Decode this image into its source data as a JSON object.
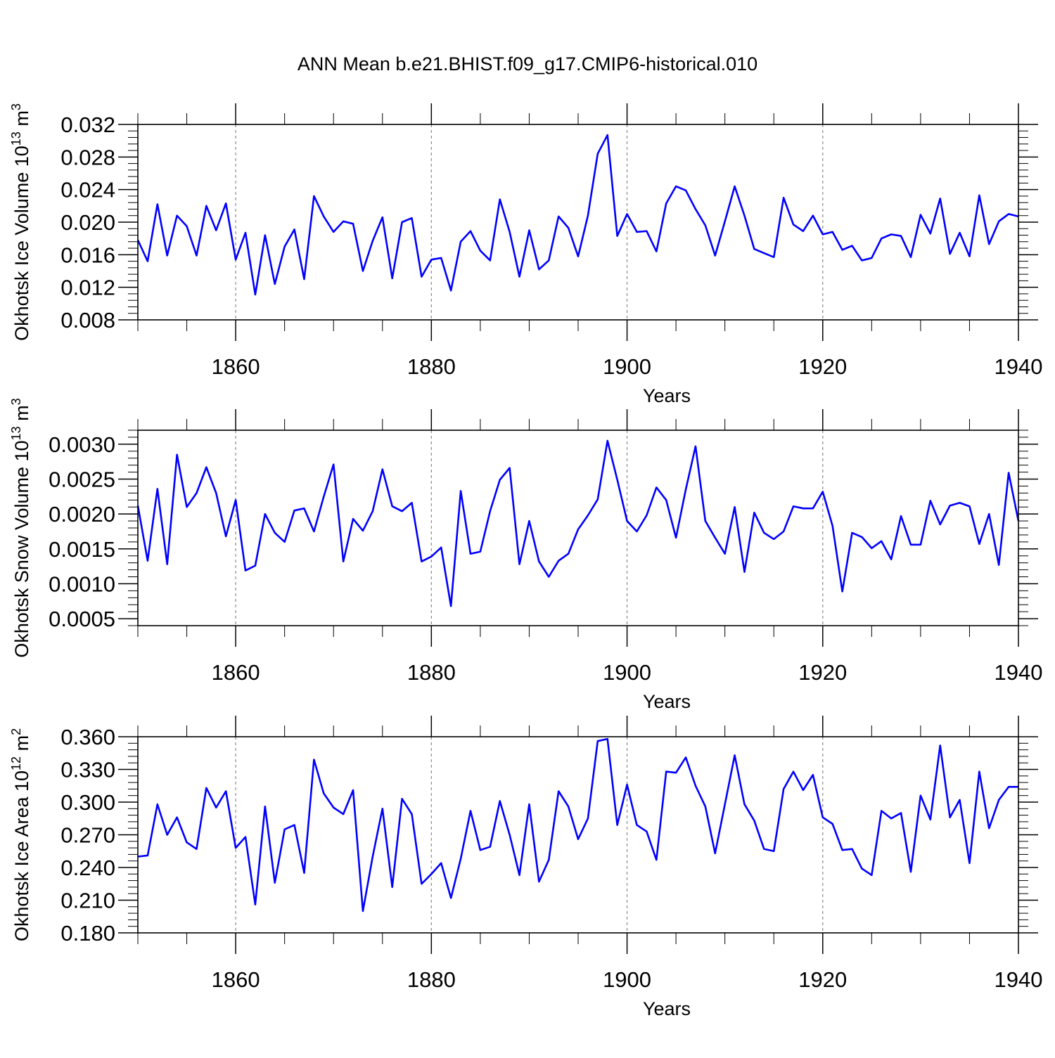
{
  "title": "ANN Mean b.e21.BHIST.f09_g17.CMIP6-historical.010",
  "line_color": "#0000ff",
  "chart_data": [
    {
      "type": "line",
      "ylabel_main": "Okhotsk Ice Volume 10",
      "ylabel_exp": "13",
      "ylabel_unit": " m",
      "ylabel_unit_exp": "3",
      "xlabel": "Years",
      "xlim": [
        1850,
        1940
      ],
      "ylim": [
        0.008,
        0.032
      ],
      "yticks": [
        0.008,
        0.012,
        0.016,
        0.02,
        0.024,
        0.028,
        0.032
      ],
      "ytick_labels": [
        "0.008",
        "0.012",
        "0.016",
        "0.020",
        "0.024",
        "0.028",
        "0.032"
      ],
      "yminor_step": 0.0008,
      "xticks": [
        1860,
        1880,
        1900,
        1920,
        1940
      ],
      "xtick_labels": [
        "1860",
        "1880",
        "1900",
        "1920",
        "1940"
      ],
      "x_start": 1850,
      "series": [
        {
          "name": "Okhotsk Ice Volume",
          "values": [
            0.0178,
            0.0152,
            0.0222,
            0.0159,
            0.0208,
            0.0195,
            0.0159,
            0.022,
            0.019,
            0.0223,
            0.0154,
            0.0187,
            0.0111,
            0.0184,
            0.0124,
            0.017,
            0.0191,
            0.013,
            0.0232,
            0.0207,
            0.0188,
            0.0201,
            0.0198,
            0.014,
            0.0177,
            0.0206,
            0.0131,
            0.02,
            0.0205,
            0.0133,
            0.0154,
            0.0156,
            0.0116,
            0.0176,
            0.0189,
            0.0165,
            0.0153,
            0.0228,
            0.0188,
            0.0133,
            0.019,
            0.0142,
            0.0153,
            0.0207,
            0.0193,
            0.0158,
            0.0208,
            0.0284,
            0.0307,
            0.0183,
            0.021,
            0.0188,
            0.0189,
            0.0164,
            0.0223,
            0.0244,
            0.0239,
            0.0216,
            0.0196,
            0.0159,
            0.0201,
            0.0244,
            0.0208,
            0.0167,
            0.0162,
            0.0157,
            0.023,
            0.0197,
            0.0189,
            0.0208,
            0.0185,
            0.0188,
            0.0166,
            0.0171,
            0.0153,
            0.0156,
            0.018,
            0.0185,
            0.0183,
            0.0157,
            0.0209,
            0.0186,
            0.0229,
            0.0161,
            0.0187,
            0.0158,
            0.0233,
            0.0173,
            0.0201,
            0.021,
            0.0207
          ]
        }
      ]
    },
    {
      "type": "line",
      "ylabel_main": "Okhotsk Snow Volume 10",
      "ylabel_exp": "13",
      "ylabel_unit": " m",
      "ylabel_unit_exp": "3",
      "xlabel": "Years",
      "xlim": [
        1850,
        1940
      ],
      "ylim": [
        0.0004,
        0.0032
      ],
      "yticks": [
        0.0005,
        0.001,
        0.0015,
        0.002,
        0.0025,
        0.003
      ],
      "ytick_labels": [
        "0.0005",
        "0.0010",
        "0.0015",
        "0.0020",
        "0.0025",
        "0.0030"
      ],
      "yminor_step": 0.0001,
      "xticks": [
        1860,
        1880,
        1900,
        1920,
        1940
      ],
      "xtick_labels": [
        "1860",
        "1880",
        "1900",
        "1920",
        "1940"
      ],
      "x_start": 1850,
      "series": [
        {
          "name": "Okhotsk Snow Volume",
          "values": [
            0.00212,
            0.00133,
            0.00236,
            0.00128,
            0.00285,
            0.0021,
            0.0023,
            0.00267,
            0.0023,
            0.00168,
            0.0022,
            0.00119,
            0.00126,
            0.002,
            0.00173,
            0.0016,
            0.00205,
            0.00208,
            0.00175,
            0.00225,
            0.00271,
            0.00132,
            0.00193,
            0.00176,
            0.00204,
            0.00264,
            0.00211,
            0.00204,
            0.00216,
            0.00132,
            0.00139,
            0.00152,
            0.00068,
            0.00233,
            0.00143,
            0.00146,
            0.00204,
            0.00249,
            0.00266,
            0.00128,
            0.0019,
            0.00132,
            0.0011,
            0.00133,
            0.00143,
            0.00178,
            0.00198,
            0.00221,
            0.00305,
            0.00249,
            0.0019,
            0.00175,
            0.00198,
            0.00238,
            0.0022,
            0.00166,
            0.00235,
            0.00297,
            0.0019,
            0.00166,
            0.00143,
            0.0021,
            0.00117,
            0.00202,
            0.00173,
            0.00164,
            0.00175,
            0.00211,
            0.00208,
            0.00208,
            0.00232,
            0.00183,
            0.00089,
            0.00173,
            0.00167,
            0.00151,
            0.00161,
            0.00135,
            0.00197,
            0.00156,
            0.00156,
            0.00219,
            0.00185,
            0.00212,
            0.00216,
            0.00211,
            0.00157,
            0.002,
            0.00127,
            0.00259,
            0.0019
          ]
        }
      ]
    },
    {
      "type": "line",
      "ylabel_main": "Okhotsk Ice Area 10",
      "ylabel_exp": "12",
      "ylabel_unit": " m",
      "ylabel_unit_exp": "2",
      "xlabel": "Years",
      "xlim": [
        1850,
        1940
      ],
      "ylim": [
        0.18,
        0.36
      ],
      "yticks": [
        0.18,
        0.21,
        0.24,
        0.27,
        0.3,
        0.33,
        0.36
      ],
      "ytick_labels": [
        "0.180",
        "0.210",
        "0.240",
        "0.270",
        "0.300",
        "0.330",
        "0.360"
      ],
      "yminor_step": 0.006,
      "xticks": [
        1860,
        1880,
        1900,
        1920,
        1940
      ],
      "xtick_labels": [
        "1860",
        "1880",
        "1900",
        "1920",
        "1940"
      ],
      "x_start": 1850,
      "series": [
        {
          "name": "Okhotsk Ice Area",
          "values": [
            0.25,
            0.251,
            0.298,
            0.27,
            0.286,
            0.263,
            0.257,
            0.313,
            0.295,
            0.31,
            0.258,
            0.268,
            0.206,
            0.296,
            0.226,
            0.275,
            0.279,
            0.235,
            0.339,
            0.308,
            0.295,
            0.289,
            0.311,
            0.2,
            0.25,
            0.294,
            0.222,
            0.303,
            0.289,
            0.225,
            0.234,
            0.244,
            0.212,
            0.248,
            0.292,
            0.256,
            0.259,
            0.301,
            0.27,
            0.233,
            0.298,
            0.227,
            0.247,
            0.31,
            0.296,
            0.266,
            0.285,
            0.356,
            0.358,
            0.279,
            0.316,
            0.279,
            0.273,
            0.247,
            0.328,
            0.327,
            0.341,
            0.315,
            0.296,
            0.253,
            0.298,
            0.343,
            0.298,
            0.283,
            0.257,
            0.255,
            0.312,
            0.328,
            0.311,
            0.325,
            0.286,
            0.28,
            0.256,
            0.257,
            0.239,
            0.233,
            0.292,
            0.285,
            0.29,
            0.236,
            0.306,
            0.284,
            0.352,
            0.286,
            0.302,
            0.244,
            0.328,
            0.276,
            0.302,
            0.314,
            0.314
          ]
        }
      ]
    }
  ]
}
